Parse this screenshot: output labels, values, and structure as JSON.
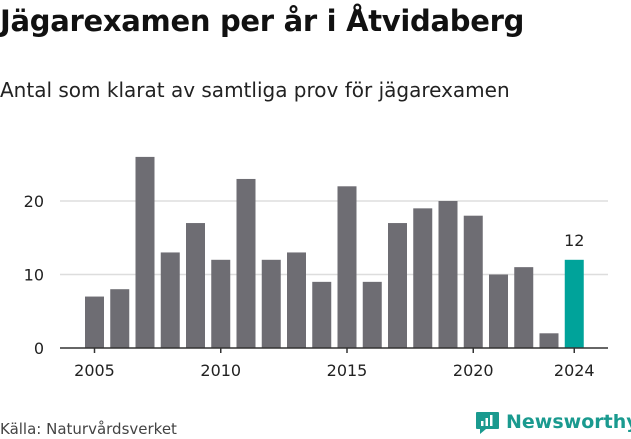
{
  "title": "Jägarexamen per år i Åtvidaberg",
  "subtitle": "Antal som klarat av samtliga prov för jägarexamen",
  "source": "Källa: Naturvårdsverket",
  "brand": "Newsworthy",
  "colors": {
    "bar": "#6e6d73",
    "highlight": "#00a39a",
    "grid": "#dddddd",
    "axis": "#333333",
    "brand": "#1a9a8f"
  },
  "chart_data": {
    "type": "bar",
    "x": [
      2005,
      2006,
      2007,
      2008,
      2009,
      2010,
      2011,
      2012,
      2013,
      2014,
      2015,
      2016,
      2017,
      2018,
      2019,
      2020,
      2021,
      2022,
      2023,
      2024
    ],
    "values": [
      7,
      8,
      26,
      13,
      17,
      12,
      23,
      12,
      13,
      9,
      22,
      9,
      17,
      19,
      20,
      18,
      10,
      11,
      2,
      12
    ],
    "x_ticks": [
      "2005",
      "2010",
      "2015",
      "2020",
      "2024"
    ],
    "y_ticks": [
      "0",
      "10",
      "20"
    ],
    "ylim": [
      0,
      27
    ],
    "grid": true,
    "highlight_index": 19,
    "highlight_label": "12"
  }
}
